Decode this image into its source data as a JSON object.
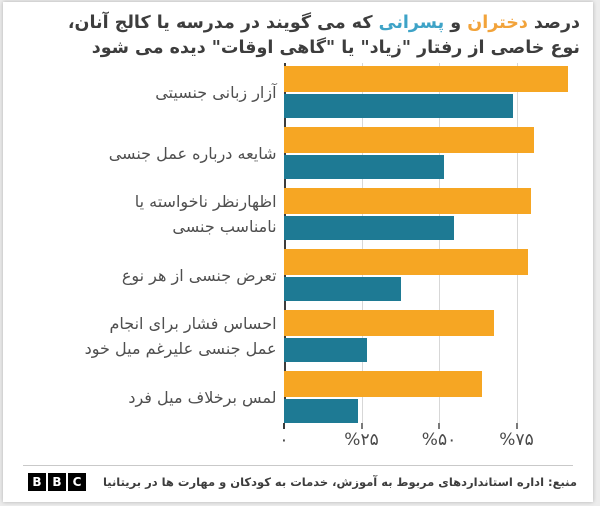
{
  "title": {
    "line1_segments": [
      {
        "name": "title-text",
        "text": "درصد ",
        "color": "#3d3d3d"
      },
      {
        "name": "title-word-girls",
        "text": "دختران",
        "color": "#f2a33a"
      },
      {
        "name": "title-text",
        "text": " و ",
        "color": "#3d3d3d"
      },
      {
        "name": "title-word-boys",
        "text": "پسرانی",
        "color": "#3ea3c7"
      },
      {
        "name": "title-text",
        "text": " که می گویند در مدرسه یا کالج آنان،",
        "color": "#3d3d3d"
      }
    ],
    "line2": "نوع خاصی از رفتار \"زیاد\" یا \"گاهی اوقات\" دیده می شود"
  },
  "chart_data": {
    "type": "bar",
    "orientation": "horizontal",
    "unit": "percent",
    "categories": [
      "آزار زبانی جنسیتی",
      "شایعه درباره عمل جنسی",
      "اظهارنظر ناخواسته یا نامناسب جنسی",
      "تعرض جنسی از هر نوع",
      "احساس فشار برای انجام عمل جنسی علیرغم میل خود",
      "لمس برخلاف میل فرد"
    ],
    "category_lines": [
      [
        "آزار زبانی جنسیتی"
      ],
      [
        "شایعه درباره عمل جنسی"
      ],
      [
        "اظهارنظر ناخواسته یا",
        "نامناسب جنسی"
      ],
      [
        "تعرض جنسی از هر نوع"
      ],
      [
        "احساس فشار برای انجام",
        "عمل جنسی علیرغم میل خود"
      ],
      [
        "لمس برخلاف میل فرد"
      ]
    ],
    "series": [
      {
        "name": "دختران",
        "color": "#f6a623",
        "values": [
          92,
          81,
          80,
          79,
          68,
          64
        ]
      },
      {
        "name": "پسران",
        "color": "#1e7a94",
        "values": [
          74,
          52,
          55,
          38,
          27,
          24
        ]
      }
    ],
    "xlim": [
      0,
      100
    ],
    "xticks": [
      {
        "value": 0,
        "label": "۰"
      },
      {
        "value": 25,
        "label": "%۲۵"
      },
      {
        "value": 50,
        "label": "%۵۰"
      },
      {
        "value": 75,
        "label": "%۷۵"
      }
    ],
    "grid": true,
    "legend_position": "inline-in-title"
  },
  "footer": {
    "logo_letters": [
      "B",
      "B",
      "C"
    ],
    "source": "منبع: اداره استانداردهای مربوط به آموزش، خدمات به کودکان و مهارت ها در بریتانیا"
  },
  "colors": {
    "girls_bar": "#f6a623",
    "boys_bar": "#1e7a94",
    "title_girls": "#f2a33a",
    "title_boys": "#3ea3c7",
    "text": "#3d3d3d",
    "gridline": "#d7d7d7",
    "axis": "#3c3c3c"
  }
}
